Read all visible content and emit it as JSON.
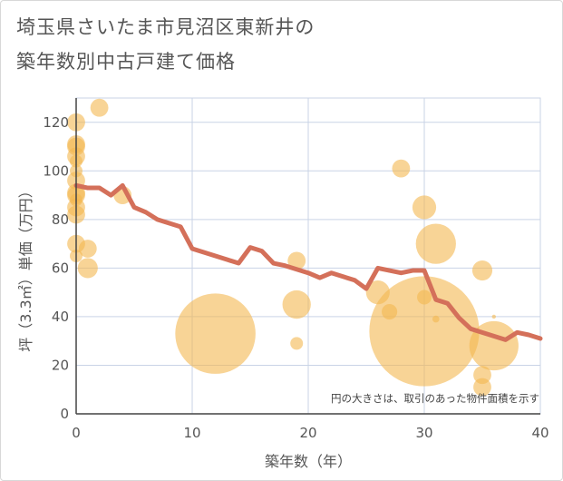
{
  "chart_data": {
    "type": "scatter",
    "title_line1": "埼玉県さいたま市見沼区東新井の",
    "title_line2": "築年数別中古戸建て価格",
    "xlabel": "築年数（年）",
    "ylabel": "坪（3.3㎡）単価（万円）",
    "xlim": [
      0,
      40
    ],
    "ylim": [
      0,
      130
    ],
    "xticks": [
      0,
      10,
      20,
      30,
      40
    ],
    "yticks": [
      0,
      20,
      40,
      60,
      80,
      100,
      120
    ],
    "note": "円の大きさは、取引のあった物件面積を示す",
    "colors": {
      "bubble": "#f4b850",
      "line": "#d4705a",
      "grid": "#c9d3e6",
      "axis": "#444444"
    },
    "bubbles": [
      {
        "x": 0,
        "y": 120,
        "size": 2
      },
      {
        "x": 0,
        "y": 111,
        "size": 2
      },
      {
        "x": 0,
        "y": 110,
        "size": 2
      },
      {
        "x": 0,
        "y": 106,
        "size": 2
      },
      {
        "x": 0,
        "y": 104,
        "size": 1
      },
      {
        "x": 0,
        "y": 100,
        "size": 1
      },
      {
        "x": 0,
        "y": 96,
        "size": 2
      },
      {
        "x": 0,
        "y": 91,
        "size": 2
      },
      {
        "x": 0,
        "y": 90,
        "size": 2
      },
      {
        "x": 0,
        "y": 88,
        "size": 1
      },
      {
        "x": 0,
        "y": 85,
        "size": 2
      },
      {
        "x": 0,
        "y": 82,
        "size": 2
      },
      {
        "x": 0,
        "y": 70,
        "size": 2
      },
      {
        "x": 0,
        "y": 65,
        "size": 1
      },
      {
        "x": 1,
        "y": 68,
        "size": 2
      },
      {
        "x": 1,
        "y": 60,
        "size": 2.5
      },
      {
        "x": 2,
        "y": 126,
        "size": 2
      },
      {
        "x": 4,
        "y": 90,
        "size": 2
      },
      {
        "x": 12,
        "y": 33,
        "size": 40
      },
      {
        "x": 19,
        "y": 63,
        "size": 2
      },
      {
        "x": 19,
        "y": 45,
        "size": 5
      },
      {
        "x": 19,
        "y": 29,
        "size": 1
      },
      {
        "x": 26,
        "y": 50,
        "size": 3.5
      },
      {
        "x": 27,
        "y": 42,
        "size": 1.5
      },
      {
        "x": 28,
        "y": 101,
        "size": 2
      },
      {
        "x": 30,
        "y": 85,
        "size": 3.5
      },
      {
        "x": 30,
        "y": 48,
        "size": 1.3
      },
      {
        "x": 30,
        "y": 34,
        "size": 75
      },
      {
        "x": 31,
        "y": 70,
        "size": 10
      },
      {
        "x": 31,
        "y": 39,
        "size": 0.3
      },
      {
        "x": 35,
        "y": 59,
        "size": 2.5
      },
      {
        "x": 35,
        "y": 16,
        "size": 2
      },
      {
        "x": 35,
        "y": 11,
        "size": 2
      },
      {
        "x": 36,
        "y": 40,
        "size": 0.1
      },
      {
        "x": 36,
        "y": 28,
        "size": 15
      }
    ],
    "trend": {
      "x": [
        0,
        1,
        2,
        3,
        4,
        5,
        6,
        7,
        8,
        9,
        10,
        11,
        12,
        13,
        14,
        15,
        16,
        17,
        18,
        19,
        20,
        21,
        22,
        23,
        24,
        25,
        26,
        27,
        28,
        29,
        30,
        31,
        32,
        33,
        34,
        35,
        36,
        37,
        38,
        39,
        40
      ],
      "y": [
        94,
        93,
        93,
        90,
        94,
        85,
        83,
        80,
        78.5,
        77,
        68,
        66.5,
        65,
        63.5,
        62,
        68.5,
        67,
        62,
        61,
        59.5,
        58,
        56,
        58,
        56.5,
        55,
        51.5,
        60,
        59,
        58,
        59,
        59,
        47,
        45.5,
        39.5,
        35,
        33.5,
        32,
        30.5,
        33.5,
        32.5,
        31
      ]
    }
  }
}
